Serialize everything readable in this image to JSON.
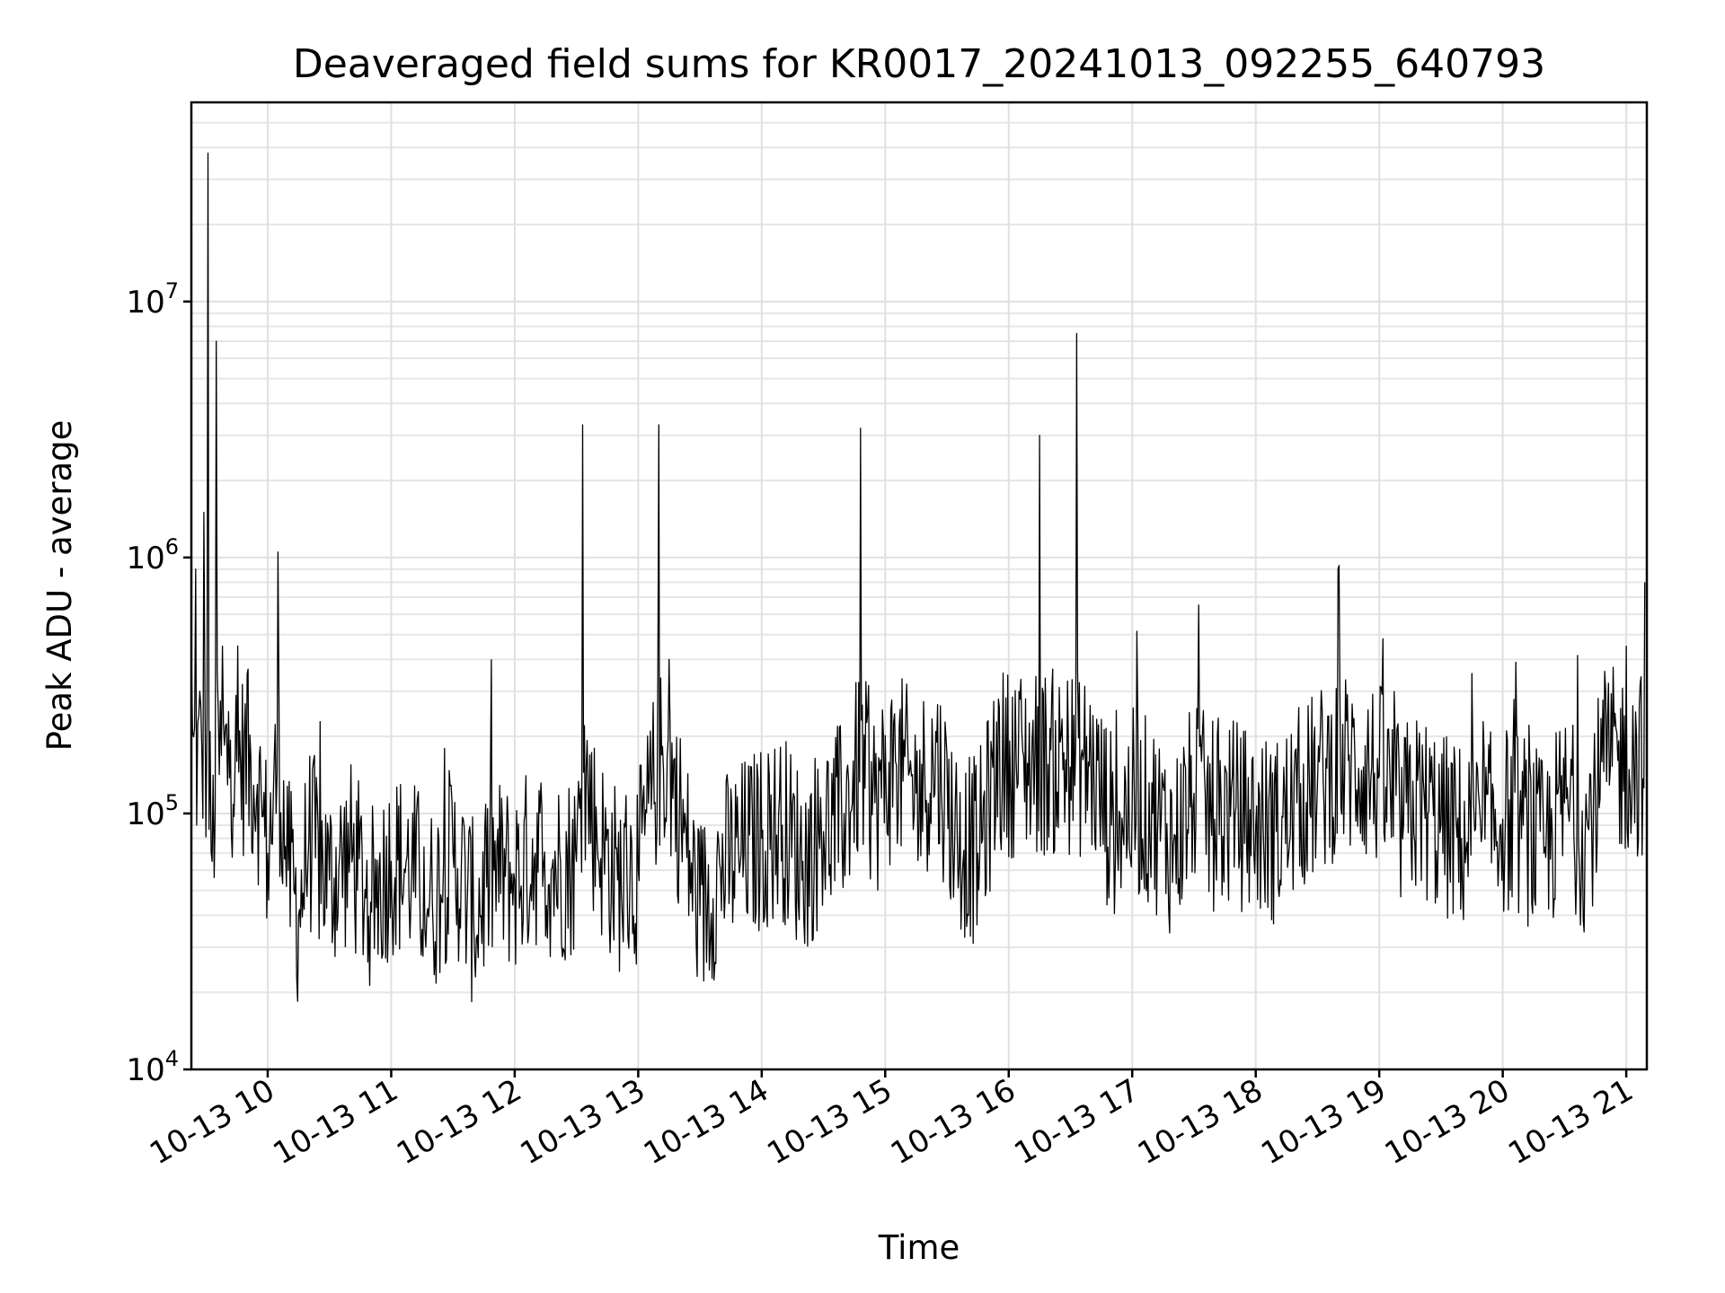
{
  "chart_data": {
    "type": "line",
    "title": "Deaveraged field sums for KR0017_20241013_092255_640793",
    "xlabel": "Time",
    "ylabel": "Peak ADU - average",
    "y_scale": "log",
    "ylim": [
      10000,
      60000000
    ],
    "xlim": [
      "2024-10-13T09:22:55",
      "2024-10-13T21:10:00"
    ],
    "grid": true,
    "grid_minor": true,
    "line_color": "#000000",
    "x_ticks": [
      {
        "value": "2024-10-13T10:00",
        "label": "10-13 10"
      },
      {
        "value": "2024-10-13T11:00",
        "label": "10-13 11"
      },
      {
        "value": "2024-10-13T12:00",
        "label": "10-13 12"
      },
      {
        "value": "2024-10-13T13:00",
        "label": "10-13 13"
      },
      {
        "value": "2024-10-13T14:00",
        "label": "10-13 14"
      },
      {
        "value": "2024-10-13T15:00",
        "label": "10-13 15"
      },
      {
        "value": "2024-10-13T16:00",
        "label": "10-13 16"
      },
      {
        "value": "2024-10-13T17:00",
        "label": "10-13 17"
      },
      {
        "value": "2024-10-13T18:00",
        "label": "10-13 18"
      },
      {
        "value": "2024-10-13T19:00",
        "label": "10-13 19"
      },
      {
        "value": "2024-10-13T20:00",
        "label": "10-13 20"
      },
      {
        "value": "2024-10-13T21:00",
        "label": "10-13 21"
      }
    ],
    "y_ticks": [
      {
        "value": 10000,
        "base": "10",
        "exp": "4"
      },
      {
        "value": 100000,
        "base": "10",
        "exp": "5"
      },
      {
        "value": 1000000,
        "base": "10",
        "exp": "6"
      },
      {
        "value": 10000000,
        "base": "10",
        "exp": "7"
      }
    ],
    "series": [
      {
        "x": [
          "2024-10-13T09:23",
          "2024-10-13T09:25",
          "2024-10-13T09:27",
          "2024-10-13T09:29",
          "2024-10-13T09:31",
          "2024-10-13T09:33",
          "2024-10-13T09:35",
          "2024-10-13T09:38",
          "2024-10-13T09:41",
          "2024-10-13T09:45",
          "2024-10-13T09:50",
          "2024-10-13T09:55",
          "2024-10-13T10:00",
          "2024-10-13T10:05",
          "2024-10-13T10:10",
          "2024-10-13T10:15",
          "2024-10-13T10:20",
          "2024-10-13T10:30",
          "2024-10-13T10:40",
          "2024-10-13T10:50",
          "2024-10-13T11:00",
          "2024-10-13T11:10",
          "2024-10-13T11:20",
          "2024-10-13T11:30",
          "2024-10-13T11:40",
          "2024-10-13T11:50",
          "2024-10-13T12:00",
          "2024-10-13T12:10",
          "2024-10-13T12:20",
          "2024-10-13T12:30",
          "2024-10-13T12:33",
          "2024-10-13T12:40",
          "2024-10-13T12:50",
          "2024-10-13T13:00",
          "2024-10-13T13:10",
          "2024-10-13T13:15",
          "2024-10-13T13:20",
          "2024-10-13T13:30",
          "2024-10-13T13:40",
          "2024-10-13T13:50",
          "2024-10-13T14:00",
          "2024-10-13T14:10",
          "2024-10-13T14:20",
          "2024-10-13T14:30",
          "2024-10-13T14:40",
          "2024-10-13T14:48",
          "2024-10-13T14:55",
          "2024-10-13T15:05",
          "2024-10-13T15:15",
          "2024-10-13T15:25",
          "2024-10-13T15:35",
          "2024-10-13T15:45",
          "2024-10-13T15:55",
          "2024-10-13T16:05",
          "2024-10-13T16:15",
          "2024-10-13T16:25",
          "2024-10-13T16:33",
          "2024-10-13T16:40",
          "2024-10-13T16:50",
          "2024-10-13T17:00",
          "2024-10-13T17:10",
          "2024-10-13T17:20",
          "2024-10-13T17:30",
          "2024-10-13T17:40",
          "2024-10-13T17:50",
          "2024-10-13T18:00",
          "2024-10-13T18:10",
          "2024-10-13T18:20",
          "2024-10-13T18:30",
          "2024-10-13T18:40",
          "2024-10-13T18:50",
          "2024-10-13T19:00",
          "2024-10-13T19:10",
          "2024-10-13T19:20",
          "2024-10-13T19:30",
          "2024-10-13T19:40",
          "2024-10-13T19:50",
          "2024-10-13T20:00",
          "2024-10-13T20:10",
          "2024-10-13T20:20",
          "2024-10-13T20:30",
          "2024-10-13T20:40",
          "2024-10-13T20:50",
          "2024-10-13T21:00",
          "2024-10-13T21:05",
          "2024-10-13T21:09"
        ],
        "values": [
          400000,
          900000,
          300000,
          1500000,
          38000000,
          65000,
          7000000,
          450000,
          250000,
          160000,
          350000,
          130000,
          70000,
          1050000,
          60000,
          40000,
          80000,
          55000,
          70000,
          45000,
          65000,
          60000,
          45000,
          70000,
          40000,
          60000,
          55000,
          70000,
          60000,
          65000,
          3300000,
          80000,
          55000,
          60000,
          3300000,
          400000,
          100000,
          40000,
          60000,
          70000,
          80000,
          90000,
          65000,
          85000,
          100000,
          3200000,
          110000,
          160000,
          120000,
          190000,
          80000,
          70000,
          280000,
          300000,
          3000000,
          190000,
          7500000,
          150000,
          90000,
          110000,
          100000,
          75000,
          120000,
          95000,
          100000,
          90000,
          85000,
          110000,
          130000,
          900000,
          150000,
          140000,
          95000,
          110000,
          90000,
          80000,
          85000,
          95000,
          90000,
          70000,
          110000,
          80000,
          300000,
          450000,
          200000,
          800000
        ]
      }
    ]
  }
}
